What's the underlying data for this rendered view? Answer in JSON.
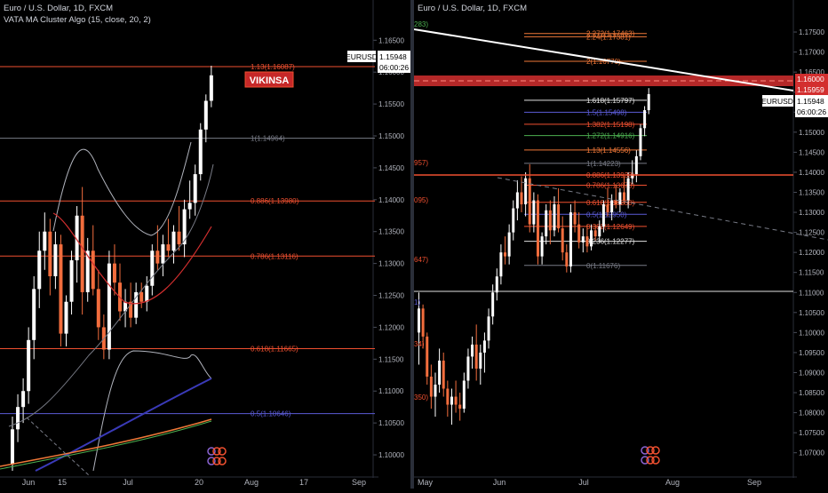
{
  "chart_data": [
    {
      "type": "candlestick",
      "title": "Euro / U.S. Dollar, 1D, FXCM",
      "indicator": "VATA MA Cluster Algo (15, close, 20, 2)",
      "x_ticks": [
        "Jun",
        "15",
        "Jul",
        "20",
        "Aug",
        "17",
        "Sep"
      ],
      "y_ticks": [
        "1.16500",
        "1.16000",
        "1.15500",
        "1.15000",
        "1.14500",
        "1.14000",
        "1.13500",
        "1.13000",
        "1.12500",
        "1.12000",
        "1.11500",
        "1.11000",
        "1.10500",
        "1.10000"
      ],
      "ylim": [
        1.0975,
        1.1688
      ],
      "price_tag": {
        "symbol": "EURUSD",
        "price": "1.15948",
        "countdown": "06:00:26"
      },
      "annotation": "VIKINSA",
      "fib_levels": [
        {
          "label": "1.13(1.16087)",
          "price": 1.16087,
          "color": "#f05030"
        },
        {
          "label": "1(1.14964)",
          "price": 1.14964,
          "color": "#787b86"
        },
        {
          "label": "0.886(1.13980)",
          "price": 1.1398,
          "color": "#f05030"
        },
        {
          "label": "0.786(1.13116)",
          "price": 1.13116,
          "color": "#f05030"
        },
        {
          "label": "0.618(1.11665)",
          "price": 1.11665,
          "color": "#f05030"
        },
        {
          "label": "0.5(1.10646)",
          "price": 1.10646,
          "color": "#5b5bd6"
        }
      ],
      "candles": [
        [
          1.0985,
          1.106,
          1.0975,
          1.104
        ],
        [
          1.104,
          1.1095,
          1.102,
          1.1075
        ],
        [
          1.1075,
          1.112,
          1.105,
          1.11
        ],
        [
          1.11,
          1.12,
          1.108,
          1.118
        ],
        [
          1.118,
          1.128,
          1.115,
          1.126
        ],
        [
          1.126,
          1.135,
          1.123,
          1.132
        ],
        [
          1.132,
          1.138,
          1.129,
          1.135
        ],
        [
          1.135,
          1.137,
          1.125,
          1.128
        ],
        [
          1.128,
          1.135,
          1.126,
          1.133
        ],
        [
          1.133,
          1.1345,
          1.117,
          1.119
        ],
        [
          1.119,
          1.125,
          1.117,
          1.124
        ],
        [
          1.124,
          1.132,
          1.122,
          1.1305
        ],
        [
          1.1305,
          1.139,
          1.127,
          1.1375
        ],
        [
          1.1375,
          1.142,
          1.122,
          1.1255
        ],
        [
          1.1255,
          1.134,
          1.124,
          1.132
        ],
        [
          1.132,
          1.136,
          1.125,
          1.126
        ],
        [
          1.126,
          1.129,
          1.118,
          1.12
        ],
        [
          1.12,
          1.122,
          1.115,
          1.1165
        ],
        [
          1.1165,
          1.132,
          1.115,
          1.13
        ],
        [
          1.13,
          1.133,
          1.125,
          1.127
        ],
        [
          1.127,
          1.13,
          1.121,
          1.1225
        ],
        [
          1.1225,
          1.126,
          1.12,
          1.124
        ],
        [
          1.124,
          1.127,
          1.12,
          1.1215
        ],
        [
          1.1215,
          1.127,
          1.1205,
          1.1255
        ],
        [
          1.1255,
          1.127,
          1.123,
          1.124
        ],
        [
          1.124,
          1.128,
          1.1225,
          1.1265
        ],
        [
          1.1265,
          1.133,
          1.125,
          1.132
        ],
        [
          1.132,
          1.136,
          1.129,
          1.13
        ],
        [
          1.13,
          1.1345,
          1.128,
          1.133
        ],
        [
          1.133,
          1.137,
          1.131,
          1.132
        ],
        [
          1.132,
          1.136,
          1.13,
          1.135
        ],
        [
          1.135,
          1.139,
          1.132,
          1.133
        ],
        [
          1.133,
          1.14,
          1.131,
          1.1385
        ],
        [
          1.1385,
          1.143,
          1.137,
          1.1395
        ],
        [
          1.1395,
          1.1455,
          1.1375,
          1.144
        ],
        [
          1.144,
          1.152,
          1.143,
          1.151
        ],
        [
          1.151,
          1.1565,
          1.149,
          1.1555
        ],
        [
          1.1555,
          1.161,
          1.1545,
          1.1595
        ]
      ]
    },
    {
      "type": "candlestick",
      "title": "Euro / U.S. Dollar, 1D, FXCM",
      "x_ticks": [
        "May",
        "Jun",
        "Jul",
        "Aug",
        "Sep"
      ],
      "y_ticks": [
        "1.17500",
        "1.17000",
        "1.16500",
        "1.16000",
        "1.15500",
        "1.15000",
        "1.14500",
        "1.14000",
        "1.13500",
        "1.13000",
        "1.12500",
        "1.12000",
        "1.11500",
        "1.11000",
        "1.10500",
        "1.10000",
        "1.09500",
        "1.09000",
        "1.08500",
        "1.08000",
        "1.07500",
        "1.07000"
      ],
      "ylim": [
        1.0655,
        1.179
      ],
      "price_tags": [
        {
          "value": "1.16000",
          "kind": "level"
        },
        {
          "value": "1.15959",
          "kind": "level"
        },
        {
          "value": "EURUSD",
          "kind": "symbol"
        },
        {
          "value": "1.15948",
          "kind": "price"
        },
        {
          "value": "06:00:26",
          "kind": "countdown"
        }
      ],
      "fib_levels": [
        {
          "label": "2.272(1.17463)",
          "price": 1.17463,
          "color": "#f07838"
        },
        {
          "label": "2.24(1.17381)",
          "price": 1.17381,
          "color": "#f07838"
        },
        {
          "label": "2(1.16770)",
          "price": 1.1677,
          "color": "#f07838"
        },
        {
          "label": "1.618(1.15797)",
          "price": 1.15797,
          "color": "#e0e0e0"
        },
        {
          "label": "1.5(1.15498)",
          "price": 1.15498,
          "color": "#5b5bd6"
        },
        {
          "label": "1.382(1.15198)",
          "price": 1.15198,
          "color": "#f05030"
        },
        {
          "label": "1.272(1.14916)",
          "price": 1.14916,
          "color": "#4caf50"
        },
        {
          "label": "1.13(1.14556)",
          "price": 1.14556,
          "color": "#f07838"
        },
        {
          "label": "1(1.14223)",
          "price": 1.14223,
          "color": "#787b86"
        },
        {
          "label": "0.886(1.13933)",
          "price": 1.13933,
          "color": "#f05030"
        },
        {
          "label": "0.786(1.13678)",
          "price": 1.13678,
          "color": "#f05030"
        },
        {
          "label": "0.618(1.13250)",
          "price": 1.1325,
          "color": "#f05030"
        },
        {
          "label": "0.5(1.12950)",
          "price": 1.1295,
          "color": "#5b5bd6"
        },
        {
          "label": "0.382(1.12649)",
          "price": 1.12649,
          "color": "#f05030"
        },
        {
          "label": "0.236(1.12277)",
          "price": 1.12277,
          "color": "#e0e0e0"
        },
        {
          "label": "0(1.11676)",
          "price": 1.11676,
          "color": "#787b86"
        }
      ],
      "left_labels": [
        "283)",
        "957)",
        "095)",
        "647)",
        "1)",
        "34)",
        "350)"
      ],
      "candles": [
        [
          1.1,
          1.11,
          1.092,
          1.106
        ],
        [
          1.106,
          1.107,
          1.096,
          1.099
        ],
        [
          1.099,
          1.1,
          1.087,
          1.089
        ],
        [
          1.089,
          1.092,
          1.081,
          1.084
        ],
        [
          1.084,
          1.09,
          1.079,
          1.087
        ],
        [
          1.087,
          1.096,
          1.085,
          1.093
        ],
        [
          1.093,
          1.095,
          1.084,
          1.086
        ],
        [
          1.086,
          1.088,
          1.079,
          1.082
        ],
        [
          1.082,
          1.086,
          1.077,
          1.084
        ],
        [
          1.084,
          1.088,
          1.08,
          1.082
        ],
        [
          1.082,
          1.085,
          1.078,
          1.081
        ],
        [
          1.081,
          1.09,
          1.08,
          1.088
        ],
        [
          1.088,
          1.096,
          1.086,
          1.094
        ],
        [
          1.094,
          1.099,
          1.091,
          1.097
        ],
        [
          1.097,
          1.102,
          1.088,
          1.091
        ],
        [
          1.091,
          1.097,
          1.087,
          1.095
        ],
        [
          1.095,
          1.1,
          1.09,
          1.098
        ],
        [
          1.098,
          1.106,
          1.096,
          1.104
        ],
        [
          1.104,
          1.112,
          1.102,
          1.11
        ],
        [
          1.11,
          1.116,
          1.108,
          1.114
        ],
        [
          1.114,
          1.122,
          1.112,
          1.12
        ],
        [
          1.12,
          1.124,
          1.117,
          1.119
        ],
        [
          1.119,
          1.127,
          1.117,
          1.125
        ],
        [
          1.125,
          1.133,
          1.123,
          1.131
        ],
        [
          1.131,
          1.138,
          1.128,
          1.135
        ],
        [
          1.135,
          1.139,
          1.13,
          1.132
        ],
        [
          1.132,
          1.14,
          1.129,
          1.1385
        ],
        [
          1.1385,
          1.142,
          1.125,
          1.127
        ],
        [
          1.127,
          1.135,
          1.125,
          1.133
        ],
        [
          1.133,
          1.1345,
          1.117,
          1.119
        ],
        [
          1.119,
          1.125,
          1.117,
          1.124
        ],
        [
          1.124,
          1.132,
          1.122,
          1.1305
        ],
        [
          1.1305,
          1.133,
          1.122,
          1.1255
        ],
        [
          1.1255,
          1.134,
          1.124,
          1.132
        ],
        [
          1.132,
          1.136,
          1.125,
          1.126
        ],
        [
          1.126,
          1.129,
          1.118,
          1.12
        ],
        [
          1.12,
          1.122,
          1.115,
          1.1165
        ],
        [
          1.1165,
          1.132,
          1.115,
          1.13
        ],
        [
          1.13,
          1.133,
          1.125,
          1.127
        ],
        [
          1.127,
          1.13,
          1.121,
          1.1225
        ],
        [
          1.1225,
          1.126,
          1.12,
          1.124
        ],
        [
          1.124,
          1.127,
          1.12,
          1.1215
        ],
        [
          1.1215,
          1.127,
          1.1205,
          1.1255
        ],
        [
          1.1255,
          1.127,
          1.123,
          1.124
        ],
        [
          1.124,
          1.128,
          1.1225,
          1.1265
        ],
        [
          1.1265,
          1.133,
          1.125,
          1.132
        ],
        [
          1.132,
          1.136,
          1.129,
          1.13
        ],
        [
          1.13,
          1.1345,
          1.128,
          1.133
        ],
        [
          1.133,
          1.137,
          1.131,
          1.132
        ],
        [
          1.132,
          1.136,
          1.13,
          1.135
        ],
        [
          1.135,
          1.139,
          1.132,
          1.133
        ],
        [
          1.133,
          1.14,
          1.131,
          1.1385
        ],
        [
          1.1385,
          1.143,
          1.137,
          1.1395
        ],
        [
          1.1395,
          1.1455,
          1.1375,
          1.144
        ],
        [
          1.144,
          1.152,
          1.143,
          1.151
        ],
        [
          1.151,
          1.1565,
          1.149,
          1.1555
        ],
        [
          1.1555,
          1.161,
          1.1545,
          1.1595
        ]
      ]
    }
  ],
  "colors": {
    "background": "#000000",
    "up": "#ffffff",
    "down": "#f26d3d",
    "axis_text": "#b2b5be",
    "divider": "#2a2e39",
    "resistance_zone": "#d32f2f"
  }
}
